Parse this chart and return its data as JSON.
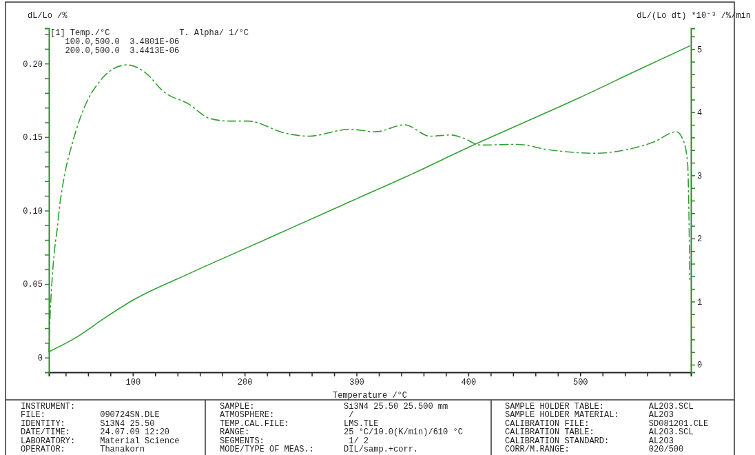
{
  "chart_data": {
    "type": "line",
    "xlabel": "Temperature /°C",
    "ylabel": "dL/Lo /%",
    "y2label": "dL/(Lo dt) *10⁻³ /%/min",
    "xlim": [
      25,
      599
    ],
    "ylim": [
      -0.01,
      0.224
    ],
    "y2lim": [
      -0.12,
      5.33
    ],
    "xticks": [
      {
        "value": 40,
        "label": null
      },
      {
        "value": 60,
        "label": null
      },
      {
        "value": 80,
        "label": null
      },
      100,
      {
        "value": 120,
        "label": null
      },
      {
        "value": 140,
        "label": null
      },
      {
        "value": 160,
        "label": null
      },
      {
        "value": 180,
        "label": null
      },
      200,
      {
        "value": 220,
        "label": null
      },
      {
        "value": 240,
        "label": null
      },
      {
        "value": 260,
        "label": null
      },
      {
        "value": 280,
        "label": null
      },
      300,
      {
        "value": 320,
        "label": null
      },
      {
        "value": 340,
        "label": null
      },
      {
        "value": 360,
        "label": null
      },
      {
        "value": 380,
        "label": null
      },
      400,
      {
        "value": 420,
        "label": null
      },
      {
        "value": 440,
        "label": null
      },
      {
        "value": 460,
        "label": null
      },
      {
        "value": 480,
        "label": null
      },
      500,
      {
        "value": 520,
        "label": null
      },
      {
        "value": 540,
        "label": null
      },
      {
        "value": 560,
        "label": null
      },
      {
        "value": 580,
        "label": null
      }
    ],
    "yticks": [
      0,
      {
        "value": 0.01,
        "label": null
      },
      {
        "value": 0.02,
        "label": null
      },
      {
        "value": 0.03,
        "label": null
      },
      {
        "value": 0.04,
        "label": null
      },
      0.05,
      {
        "value": 0.06,
        "label": null
      },
      {
        "value": 0.07,
        "label": null
      },
      {
        "value": 0.08,
        "label": null
      },
      {
        "value": 0.09,
        "label": null
      },
      {
        "value": 0.1,
        "label": "0.10"
      },
      {
        "value": 0.11,
        "label": null
      },
      {
        "value": 0.12,
        "label": null
      },
      {
        "value": 0.13,
        "label": null
      },
      {
        "value": 0.14,
        "label": null
      },
      0.15,
      {
        "value": 0.16,
        "label": null
      },
      {
        "value": 0.17,
        "label": null
      },
      {
        "value": 0.18,
        "label": null
      },
      {
        "value": 0.19,
        "label": null
      },
      {
        "value": 0.2,
        "label": "0.20"
      },
      {
        "value": 0.21,
        "label": null
      },
      {
        "value": 0.22,
        "label": null
      }
    ],
    "y2ticks": [
      0,
      {
        "value": 0.2,
        "label": null
      },
      {
        "value": 0.4,
        "label": null
      },
      {
        "value": 0.6,
        "label": null
      },
      {
        "value": 0.8,
        "label": null
      },
      1,
      {
        "value": 1.2,
        "label": null
      },
      {
        "value": 1.4,
        "label": null
      },
      {
        "value": 1.6,
        "label": null
      },
      {
        "value": 1.8,
        "label": null
      },
      2,
      {
        "value": 2.2,
        "label": null
      },
      {
        "value": 2.4,
        "label": null
      },
      {
        "value": 2.6,
        "label": null
      },
      {
        "value": 2.8,
        "label": null
      },
      3,
      {
        "value": 3.2,
        "label": null
      },
      {
        "value": 3.4,
        "label": null
      },
      {
        "value": 3.6,
        "label": null
      },
      {
        "value": 3.8,
        "label": null
      },
      4,
      {
        "value": 4.2,
        "label": null
      },
      {
        "value": 4.4,
        "label": null
      },
      {
        "value": 4.6,
        "label": null
      },
      {
        "value": 4.8,
        "label": null
      },
      5,
      {
        "value": 5.2,
        "label": null
      }
    ],
    "series": [
      {
        "color": "#33a033",
        "line_style": "solid",
        "x": [
          25,
          50,
          75,
          100,
          150,
          200,
          250,
          300,
          350,
          400,
          450,
          500,
          550,
          598
        ],
        "values": [
          0.004,
          0.014,
          0.027,
          0.039,
          0.057,
          0.074,
          0.091,
          0.108,
          0.125,
          0.143,
          0.16,
          0.177,
          0.195,
          0.212
        ]
      },
      {
        "color": "#33a033",
        "line_style": "dashdot",
        "axis": "y2",
        "x": [
          25,
          26,
          27.6,
          30.3,
          32.7,
          34.5,
          38,
          46.3,
          57,
          70,
          81,
          95,
          111,
          128,
          150,
          169,
          186,
          203,
          236,
          257,
          294,
          317,
          343,
          366,
          384,
          394,
          411,
          444,
          470,
          513,
          545,
          566,
          586,
          592,
          596,
          597,
          598
        ],
        "values": [
          0.2,
          0.74,
          1.28,
          1.86,
          2.19,
          2.5,
          2.91,
          3.53,
          4.09,
          4.48,
          4.67,
          4.75,
          4.63,
          4.32,
          4.13,
          3.9,
          3.86,
          3.86,
          3.67,
          3.62,
          3.73,
          3.69,
          3.8,
          3.62,
          3.64,
          3.6,
          3.48,
          3.49,
          3.41,
          3.35,
          3.42,
          3.53,
          3.69,
          3.56,
          3.2,
          2.6,
          1.35
        ]
      }
    ],
    "annotations": [
      "[1] Temp./°C              T. Alpha/ 1/°C",
      "   100.0,500.0  3.4801E-06",
      "   200.0,500.0  3.4413E-06",
      "INSTRUMENT:",
      "FILE:           090724SN.DLE",
      "IDENTITY:       Si3N4 25.50",
      "DATE/TIME:      24.07.09 12:20",
      "LABORATORY:     Material Science",
      "OPERATOR:       Thanakorn",
      "SAMPLE:                  Si3N4 25.50 25.500 mm",
      "ATMOSPHERE:               /",
      "TEMP.CAL.FILE:           LMS.TLE",
      "RANGE:                   25 °C/10.0(K/min)/610 °C",
      "SEGMENTS:                 1/ 2",
      "MODE/TYPE OF MEAS.:      DIL/samp.+corr.",
      "SAMPLE HOLDER TABLE:         AL2O3.SCL",
      "SAMPLE HOLDER MATERIAL:      AL2O3",
      "CALIBRATION FILE:            SD081201.CLE",
      "CALIBRATION TABLE:           AL2O3.SCL",
      "CALIBRATION STANDARD:        AL2O3",
      "CORR/M.RANGE:                020/500"
    ]
  }
}
